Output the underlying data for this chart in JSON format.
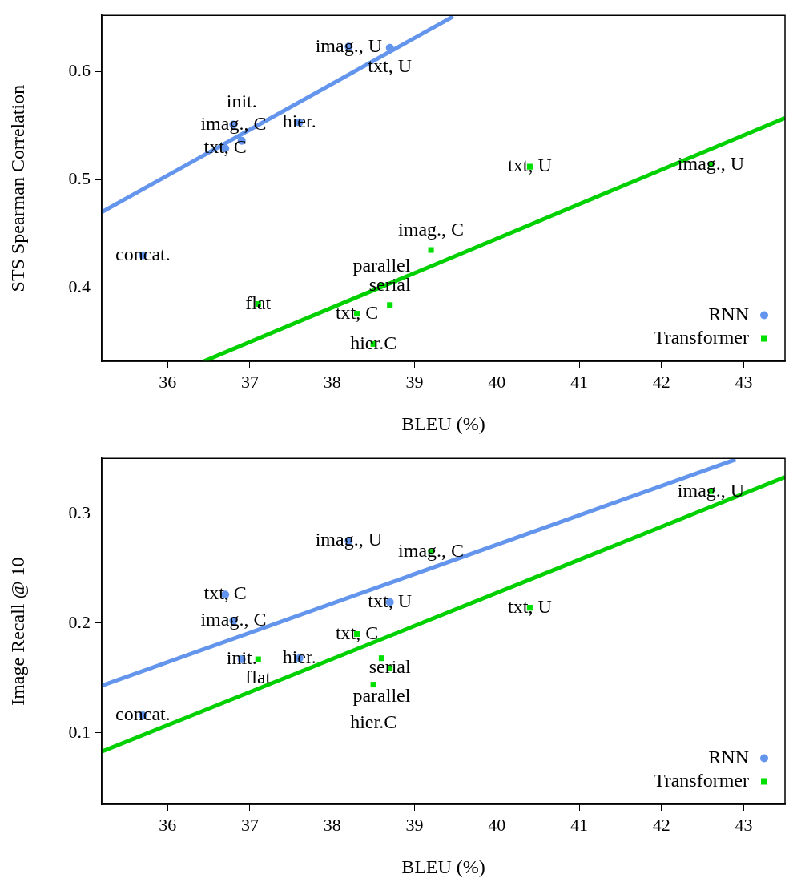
{
  "chart_data": [
    {
      "type": "scatter",
      "xlabel": "BLEU (%)",
      "ylabel": "STS Spearman Correlation",
      "xlim": [
        35.2,
        43.5
      ],
      "xticks": [
        36,
        37,
        38,
        39,
        40,
        41,
        42,
        43
      ],
      "ylim": [
        0.332,
        0.652
      ],
      "yticks": [
        0.4,
        0.5,
        0.6
      ],
      "grid": false,
      "legend": "bottom right",
      "series": [
        {
          "name": "RNN",
          "color": "#6495ed",
          "marker": "circle",
          "x": [
            35.7,
            36.7,
            36.8,
            36.9,
            37.6,
            38.2,
            38.7
          ],
          "values": [
            0.43,
            0.529,
            0.551,
            0.536,
            0.553,
            0.623,
            0.622
          ],
          "value_labels": [
            "concat.",
            "txt, C",
            "imag., C",
            "init.",
            "hier.",
            "imag., U",
            "txt, U"
          ]
        },
        {
          "name": "Transformer",
          "color": "#00e000",
          "marker": "square",
          "x": [
            37.1,
            38.3,
            38.7,
            38.6,
            38.5,
            39.2,
            40.4,
            42.6
          ],
          "values": [
            0.385,
            0.376,
            0.384,
            0.402,
            0.348,
            0.435,
            0.512,
            0.514
          ],
          "value_labels": [
            "flat",
            "txt, C",
            "serial",
            "parallel",
            "hier.C",
            "imag., C",
            "txt, U",
            "imag., U"
          ]
        },
        {
          "type": "line",
          "color": "#6495ed",
          "marker": "none",
          "line_style": "solid",
          "x": [
            35.2,
            39.47
          ],
          "values": [
            0.47,
            0.651
          ]
        },
        {
          "type": "line",
          "color": "#00d000",
          "marker": "none",
          "line_style": "solid",
          "x": [
            36.44,
            43.5
          ],
          "values": [
            0.332,
            0.557
          ]
        }
      ]
    },
    {
      "type": "scatter",
      "xlabel": "BLEU (%)",
      "ylabel": "Image Recall @ 10",
      "xlim": [
        35.2,
        43.5
      ],
      "xticks": [
        36,
        37,
        38,
        39,
        40,
        41,
        42,
        43
      ],
      "ylim": [
        0.035,
        0.35
      ],
      "yticks": [
        0.1,
        0.2,
        0.3
      ],
      "grid": false,
      "legend": "bottom right",
      "series": [
        {
          "name": "RNN",
          "color": "#6495ed",
          "marker": "circle",
          "x": [
            35.7,
            36.7,
            36.8,
            36.9,
            37.6,
            38.2,
            38.7
          ],
          "values": [
            0.116,
            0.226,
            0.202,
            0.167,
            0.168,
            0.275,
            0.219
          ],
          "value_labels": [
            "concat.",
            "txt, C",
            "imag., C",
            "init.",
            "hier.",
            "imag., U",
            "txt, U"
          ]
        },
        {
          "name": "Transformer",
          "color": "#00e000",
          "marker": "square",
          "x": [
            37.1,
            38.3,
            38.7,
            38.6,
            38.5,
            39.2,
            40.4,
            42.6
          ],
          "values": [
            0.167,
            0.19,
            0.159,
            0.168,
            0.144,
            0.265,
            0.214,
            0.32
          ],
          "value_labels": [
            "flat",
            "txt, C",
            "serial",
            "parallel",
            "hier.C",
            "imag., C",
            "txt, U",
            "imag., U"
          ]
        },
        {
          "type": "line",
          "color": "#6495ed",
          "marker": "none",
          "line_style": "solid",
          "x": [
            35.2,
            42.9
          ],
          "values": [
            0.143,
            0.349
          ]
        },
        {
          "type": "line",
          "color": "#00d000",
          "marker": "none",
          "line_style": "solid",
          "x": [
            35.2,
            43.5
          ],
          "values": [
            0.083,
            0.333
          ]
        }
      ]
    }
  ]
}
